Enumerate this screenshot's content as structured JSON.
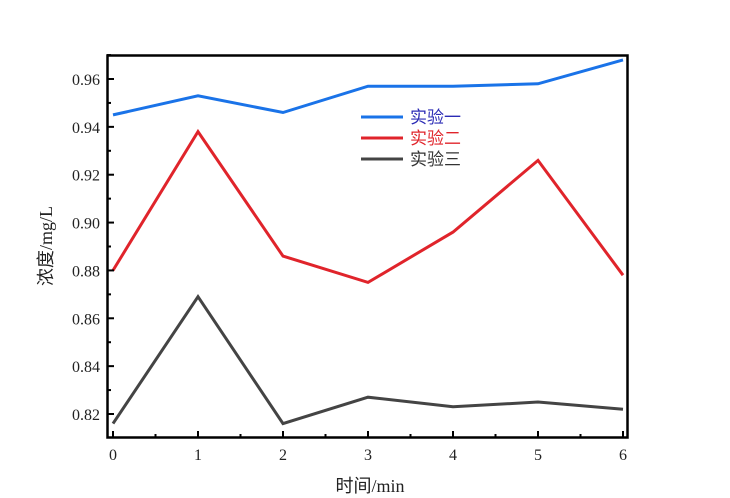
{
  "chart_data": {
    "type": "line",
    "title": "",
    "xlabel": "时间/min",
    "ylabel": "浓度/mg/L",
    "x": [
      0,
      1,
      2,
      3,
      4,
      5,
      6
    ],
    "xticks": [
      "0",
      "1",
      "2",
      "3",
      "4",
      "5",
      "6"
    ],
    "yticks": [
      "0.82",
      "0.84",
      "0.86",
      "0.88",
      "0.90",
      "0.92",
      "0.94",
      "0.96"
    ],
    "xlim": [
      -0.07,
      6.05
    ],
    "ylim": [
      0.81,
      0.97
    ],
    "grid": false,
    "legend_position": "upper center",
    "series": [
      {
        "name": "实验一",
        "color": "#1a73e8",
        "values": [
          0.945,
          0.953,
          0.946,
          0.957,
          0.957,
          0.958,
          0.968
        ]
      },
      {
        "name": "实验二",
        "color": "#e0242b",
        "values": [
          0.88,
          0.938,
          0.886,
          0.875,
          0.896,
          0.926,
          0.878
        ]
      },
      {
        "name": "实验三",
        "color": "#444444",
        "values": [
          0.816,
          0.869,
          0.816,
          0.827,
          0.823,
          0.825,
          0.822
        ]
      }
    ]
  },
  "legend": {
    "items": [
      {
        "label": "实验一",
        "color": "#1a73e8",
        "text_color": "#2b2bb5"
      },
      {
        "label": "实验二",
        "color": "#e0242b",
        "text_color": "#e0242b"
      },
      {
        "label": "实验三",
        "color": "#444444",
        "text_color": "#333333"
      }
    ]
  }
}
